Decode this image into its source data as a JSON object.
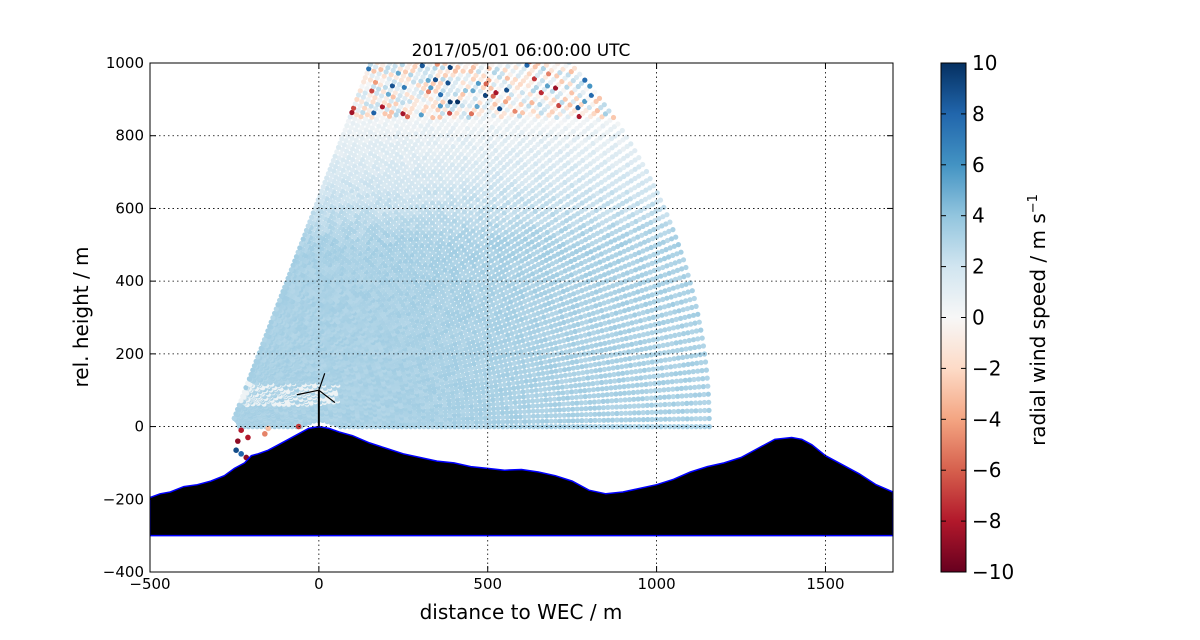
{
  "chart_data": {
    "type": "scatter",
    "title": "2017/05/01 06:00:00 UTC",
    "xlabel": "distance to WEC / m",
    "ylabel": "rel. height / m",
    "xlim": [
      -500,
      1700
    ],
    "ylim": [
      -400,
      1000
    ],
    "xticks": [
      "−500",
      "0",
      "500",
      "1000",
      "1500"
    ],
    "xtick_values": [
      -500,
      0,
      500,
      1000,
      1500
    ],
    "yticks": [
      "−400",
      "−200",
      "0",
      "200",
      "400",
      "600",
      "800",
      "1000"
    ],
    "ytick_values": [
      -400,
      -200,
      0,
      200,
      400,
      600,
      800,
      1000
    ],
    "grid": true,
    "colorbar": {
      "label": "radial wind speed / m s",
      "label_superscript": "−1",
      "range": [
        -10,
        10
      ],
      "ticks": [
        "10",
        "8",
        "6",
        "4",
        "2",
        "0",
        "−2",
        "−4",
        "−6",
        "−8",
        "−10"
      ],
      "tick_values": [
        10,
        8,
        6,
        4,
        2,
        0,
        -2,
        -4,
        -6,
        -8,
        -10
      ],
      "colormap": "RdBu",
      "colors": [
        "#67001f",
        "#b2182b",
        "#d6604d",
        "#f4a582",
        "#fddbc7",
        "#f7f7f7",
        "#d1e5f0",
        "#92c5de",
        "#4393c3",
        "#2166ac",
        "#053061"
      ]
    },
    "scan": {
      "origin": [
        -260,
        0
      ],
      "range_min_m": 0,
      "range_max_m": 1420,
      "elevation_deg_min": 0,
      "elevation_deg_max": 68,
      "dominant_speed_ms": 3.2
    },
    "terrain": {
      "fill_color": "#000000",
      "edge_color": "#0000ff",
      "base_height": -300,
      "x": [
        -500,
        -470,
        -440,
        -400,
        -360,
        -320,
        -280,
        -250,
        -220,
        -200,
        -180,
        -150,
        -120,
        -90,
        -60,
        -30,
        0,
        30,
        60,
        100,
        150,
        200,
        250,
        300,
        350,
        400,
        450,
        500,
        550,
        600,
        650,
        700,
        750,
        800,
        850,
        900,
        950,
        1000,
        1050,
        1100,
        1150,
        1200,
        1250,
        1300,
        1350,
        1400,
        1430,
        1460,
        1500,
        1550,
        1600,
        1650,
        1700
      ],
      "y": [
        -195,
        -185,
        -180,
        -165,
        -160,
        -150,
        -135,
        -115,
        -100,
        -80,
        -75,
        -65,
        -50,
        -35,
        -20,
        -5,
        0,
        -5,
        -15,
        -25,
        -45,
        -60,
        -75,
        -85,
        -95,
        -100,
        -110,
        -115,
        -120,
        -118,
        -125,
        -135,
        -150,
        -175,
        -185,
        -180,
        -170,
        -160,
        -145,
        -125,
        -110,
        -100,
        -85,
        -60,
        -35,
        -30,
        -35,
        -50,
        -80,
        -105,
        -130,
        -160,
        -180
      ]
    },
    "wec": {
      "x": 0,
      "hub_height": 100,
      "blade_length": 48
    },
    "outlier_speed_range": [
      -10,
      10
    ],
    "low_level_outliers": [
      {
        "x": -240,
        "y": -40,
        "v": -9
      },
      {
        "x": -230,
        "y": -10,
        "v": -8
      },
      {
        "x": -210,
        "y": -30,
        "v": -8
      },
      {
        "x": -245,
        "y": -65,
        "v": 9
      },
      {
        "x": -230,
        "y": -75,
        "v": 8
      },
      {
        "x": -215,
        "y": -85,
        "v": -9
      },
      {
        "x": -160,
        "y": -20,
        "v": -5
      },
      {
        "x": -150,
        "y": -5,
        "v": -3
      },
      {
        "x": -60,
        "y": 0,
        "v": -7
      }
    ]
  }
}
